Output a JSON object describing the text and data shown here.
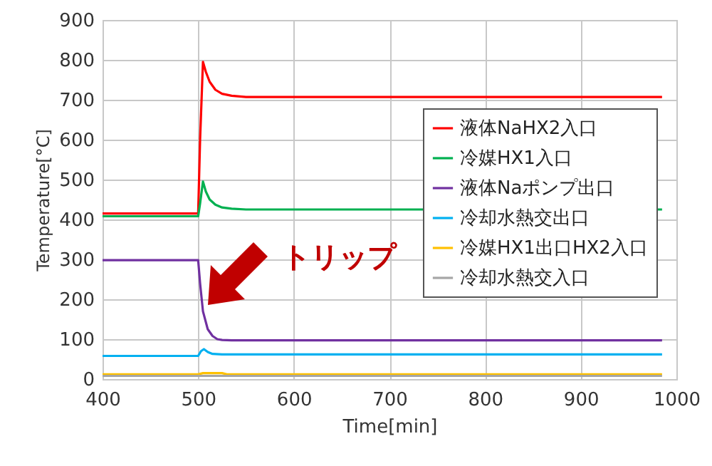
{
  "chart_data": {
    "type": "line",
    "xlabel": "Time[min]",
    "ylabel": "Temperature[°C]",
    "xlim": [
      400,
      1000
    ],
    "xticks": [
      400,
      500,
      600,
      700,
      800,
      900,
      1000
    ],
    "ylim": [
      0,
      900
    ],
    "yticks": [
      0,
      100,
      200,
      300,
      400,
      500,
      600,
      700,
      800,
      900
    ],
    "grid": true,
    "legend": "right",
    "marker": "none",
    "line_style": "solid",
    "annotations": [
      "トリップ"
    ],
    "series": [
      {
        "name": "液体NaHX2入口",
        "color": "#ff0000",
        "x": [
          400,
          500,
          502,
          505,
          508,
          512,
          518,
          525,
          535,
          550,
          600,
          985
        ],
        "values": [
          415,
          415,
          600,
          795,
          770,
          745,
          725,
          715,
          710,
          707,
          707,
          707
        ]
      },
      {
        "name": "冷媒HX1入口",
        "color": "#00b050",
        "x": [
          400,
          500,
          502,
          505,
          508,
          512,
          518,
          525,
          535,
          550,
          985
        ],
        "values": [
          408,
          408,
          440,
          495,
          470,
          450,
          437,
          430,
          427,
          425,
          425
        ]
      },
      {
        "name": "液体Naポンプ出口",
        "color": "#7030a0",
        "x": [
          400,
          500,
          502,
          505,
          510,
          515,
          520,
          525,
          535,
          985
        ],
        "values": [
          298,
          298,
          240,
          170,
          125,
          108,
          100,
          98,
          97,
          97
        ]
      },
      {
        "name": "冷却水熱交出口",
        "color": "#00b0f0",
        "x": [
          400,
          500,
          503,
          506,
          510,
          515,
          525,
          985
        ],
        "values": [
          58,
          58,
          70,
          75,
          68,
          63,
          62,
          62
        ]
      },
      {
        "name": "冷媒HX1出口HX2入口",
        "color": "#ffc000",
        "x": [
          400,
          500,
          505,
          525,
          530,
          985
        ],
        "values": [
          12,
          12,
          15,
          15,
          12,
          12
        ]
      },
      {
        "name": "冷却水熱交入口",
        "color": "#a6a6a6",
        "x": [
          400,
          985
        ],
        "values": [
          8,
          8
        ]
      }
    ]
  }
}
